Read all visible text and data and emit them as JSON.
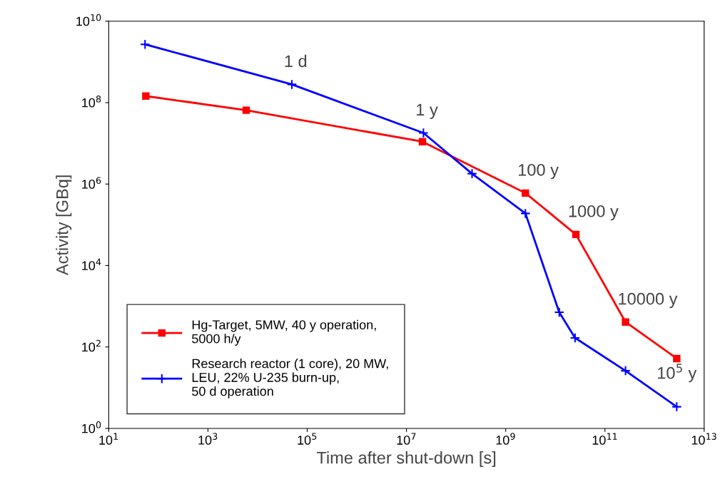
{
  "chart_data": {
    "type": "line",
    "xlabel": "Time after shut-down [s]",
    "ylabel": "Activity [GBq]",
    "log": "xy",
    "grid": false,
    "legend": "bottom left",
    "xlim": [
      10,
      10000000000000.0
    ],
    "ylim": [
      1,
      10000000000.0
    ],
    "xticks": [
      {
        "value": 10,
        "label": "10$^{1}$"
      },
      {
        "value": 1000,
        "label": "10$^{3}$"
      },
      {
        "value": 100000,
        "label": "10$^{5}$"
      },
      {
        "value": 10000000.0,
        "label": "10$^{7}$"
      },
      {
        "value": 1000000000.0,
        "label": "10$^{9}$"
      },
      {
        "value": 100000000000.0,
        "label": "10$^{11}$"
      },
      {
        "value": 10000000000000.0,
        "label": "10$^{13}$"
      }
    ],
    "yticks": [
      {
        "value": 1,
        "label": "10$^{0}$"
      },
      {
        "value": 100,
        "label": "10$^{2}$"
      },
      {
        "value": 10000,
        "label": "10$^{4}$"
      },
      {
        "value": 1000000,
        "label": "10$^{6}$"
      },
      {
        "value": 100000000.0,
        "label": "10$^{8}$"
      },
      {
        "value": 10000000000.0,
        "label": "10$^{10}$"
      }
    ],
    "series": [
      {
        "name": "Hg-Target, 5MW, 40 y operation,\n5000 h/y",
        "color": "#ff0000",
        "marker": "square",
        "line_style": "solid",
        "x": [
          56,
          5900,
          21000000.0,
          2500000000.0,
          26000000000.0,
          260000000000.0,
          2800000000000.0
        ],
        "values": [
          145000000.0,
          65000000.0,
          11000000.0,
          600000.0,
          58000.0,
          410,
          52
        ]
      },
      {
        "name": "Research reactor (1 core), 20 MW,\nLEU, 22% U-235 burn-up,\n50 d operation",
        "color": "#0000ff",
        "marker": "cross",
        "line_style": "solid",
        "x": [
          54,
          49000.0,
          22000000.0,
          210000000.0,
          2500000000.0,
          12000000000.0,
          25000000000.0,
          260000000000.0,
          2800000000000.0
        ],
        "values": [
          2700000000.0,
          280000000.0,
          18000000.0,
          1800000.0,
          190000.0,
          710,
          167,
          26,
          3.4
        ]
      }
    ],
    "annotations": [
      {
        "text": "1 d",
        "x": 49000.0,
        "y": 280000000.0
      },
      {
        "text": "1 y",
        "x": 22000000.0,
        "y": 18000000.0
      },
      {
        "text": "100 y",
        "x": 2500000000.0,
        "y": 600000.0
      },
      {
        "text": "1000 y",
        "x": 26000000000.0,
        "y": 58000.0
      },
      {
        "text": "10000 y",
        "x": 260000000000.0,
        "y": 410
      },
      {
        "text": "10$^{5}$ y",
        "x": 2800000000000.0,
        "y": 3.4
      }
    ]
  }
}
